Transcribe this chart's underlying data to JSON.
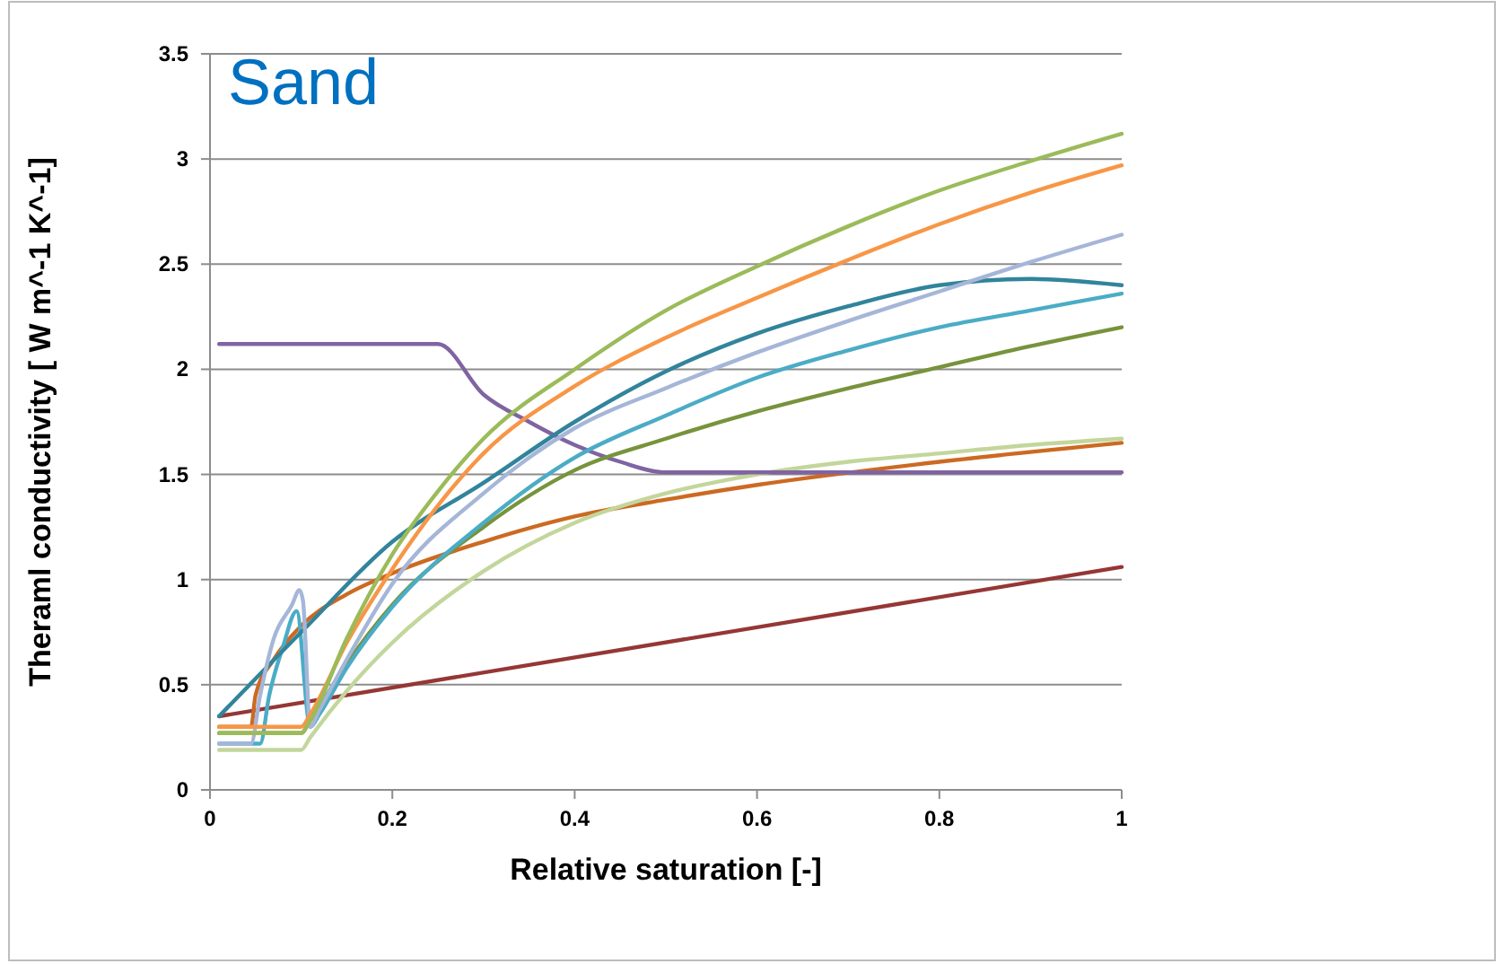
{
  "chart_data": {
    "type": "line",
    "title": "Sand",
    "xlabel": "Relative saturation [-]",
    "ylabel": "Theraml conductivity [ W m^-1 K^-1]",
    "xlim": [
      0,
      1
    ],
    "ylim": [
      0,
      3.5
    ],
    "xticks": [
      0,
      0.2,
      0.4,
      0.6,
      0.8,
      1
    ],
    "yticks": [
      0,
      0.5,
      1,
      1.5,
      2,
      2.5,
      3,
      3.5
    ],
    "grid": "y",
    "marker": "none",
    "line_style": "solid",
    "series": [
      {
        "color": "#953735",
        "x": [
          0.01,
          1
        ],
        "values": [
          0.35,
          1.06
        ]
      },
      {
        "color": "#cc6a22",
        "x": [
          0.01,
          0.045,
          0.05,
          0.07,
          0.1,
          0.15,
          0.2,
          0.3,
          0.4,
          0.5,
          0.6,
          0.8,
          1
        ],
        "values": [
          0.3,
          0.3,
          0.45,
          0.62,
          0.78,
          0.93,
          1.03,
          1.18,
          1.3,
          1.38,
          1.45,
          1.56,
          1.65
        ]
      },
      {
        "color": "#c3d69b",
        "x": [
          0.01,
          0.1,
          0.11,
          0.15,
          0.2,
          0.3,
          0.4,
          0.5,
          0.6,
          0.7,
          0.8,
          0.9,
          1
        ],
        "values": [
          0.19,
          0.19,
          0.25,
          0.47,
          0.7,
          1.04,
          1.27,
          1.41,
          1.5,
          1.56,
          1.6,
          1.64,
          1.67
        ]
      },
      {
        "color": "#8064a2",
        "x": [
          0.01,
          0.25,
          0.3,
          0.35,
          0.4,
          0.45,
          0.5,
          1
        ],
        "values": [
          2.12,
          2.12,
          1.88,
          1.75,
          1.64,
          1.56,
          1.51,
          1.51
        ]
      },
      {
        "color": "#77933c",
        "x": [
          0.01,
          0.1,
          0.11,
          0.15,
          0.2,
          0.3,
          0.4,
          0.5,
          0.6,
          0.7,
          0.8,
          0.9,
          1
        ],
        "values": [
          0.27,
          0.27,
          0.33,
          0.6,
          0.88,
          1.25,
          1.52,
          1.67,
          1.8,
          1.91,
          2.01,
          2.11,
          2.2
        ]
      },
      {
        "color": "#4bacc6",
        "x": [
          0.01,
          0.055,
          0.065,
          0.08,
          0.095,
          0.11,
          0.12,
          0.15,
          0.2,
          0.3,
          0.4,
          0.5,
          0.6,
          0.7,
          0.8,
          0.9,
          1
        ],
        "values": [
          0.22,
          0.22,
          0.45,
          0.68,
          0.85,
          0.3,
          0.36,
          0.58,
          0.87,
          1.27,
          1.58,
          1.78,
          1.96,
          2.09,
          2.2,
          2.28,
          2.36
        ]
      },
      {
        "color": "#31849b",
        "x": [
          0.01,
          0.1,
          0.2,
          0.3,
          0.4,
          0.5,
          0.6,
          0.7,
          0.8,
          0.9,
          1
        ],
        "values": [
          0.35,
          0.75,
          1.18,
          1.46,
          1.75,
          1.99,
          2.17,
          2.3,
          2.4,
          2.43,
          2.4
        ]
      },
      {
        "color": "#a5b6d8",
        "x": [
          0.01,
          0.045,
          0.055,
          0.07,
          0.09,
          0.098,
          0.102,
          0.11,
          0.12,
          0.15,
          0.2,
          0.3,
          0.4,
          0.5,
          0.6,
          0.7,
          0.8,
          0.9,
          1
        ],
        "values": [
          0.22,
          0.22,
          0.45,
          0.72,
          0.88,
          0.95,
          0.9,
          0.3,
          0.38,
          0.62,
          0.98,
          1.41,
          1.72,
          1.91,
          2.08,
          2.23,
          2.37,
          2.51,
          2.64
        ]
      },
      {
        "color": "#f79646",
        "x": [
          0.01,
          0.1,
          0.11,
          0.15,
          0.2,
          0.3,
          0.4,
          0.5,
          0.6,
          0.7,
          0.8,
          0.9,
          1
        ],
        "values": [
          0.3,
          0.3,
          0.36,
          0.7,
          1.05,
          1.6,
          1.92,
          2.15,
          2.34,
          2.52,
          2.69,
          2.84,
          2.97
        ]
      },
      {
        "color": "#9bbb59",
        "x": [
          0.01,
          0.1,
          0.11,
          0.15,
          0.2,
          0.25,
          0.3,
          0.4,
          0.5,
          0.6,
          0.7,
          0.8,
          0.9,
          1
        ],
        "values": [
          0.27,
          0.27,
          0.33,
          0.72,
          1.12,
          1.42,
          1.67,
          2.0,
          2.28,
          2.49,
          2.68,
          2.85,
          2.99,
          3.12
        ]
      }
    ]
  }
}
